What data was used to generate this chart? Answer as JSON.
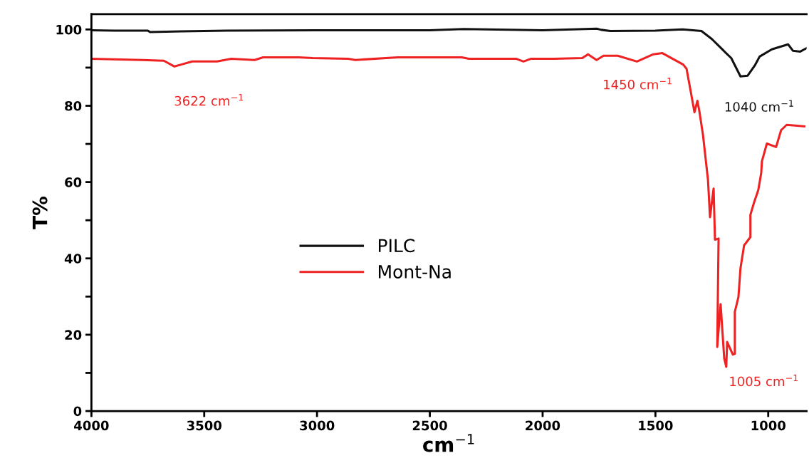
{
  "chart_data": {
    "type": "line",
    "xlabel": "cm$^{−1}$",
    "ylabel": "T%",
    "xlim": [
      4000,
      830
    ],
    "xticks": [
      4000,
      3500,
      3000,
      2500,
      2000,
      1500,
      1000
    ],
    "ylim": [
      0,
      104
    ],
    "yticks": [
      0,
      {
        "value": 10,
        "label": null
      },
      20,
      {
        "value": 30,
        "label": null
      },
      40,
      {
        "value": 50,
        "label": null
      },
      60,
      {
        "value": 70,
        "label": null
      },
      80,
      {
        "value": 90,
        "label": null
      },
      100
    ],
    "legend": "left",
    "grid": false,
    "marker": "none",
    "line_style": "solid",
    "series": [
      {
        "name": "PILC",
        "color": "#111111",
        "x": [
          4000,
          3900,
          3750,
          3740,
          3600,
          3400,
          3000,
          2500,
          2350,
          2000,
          1760,
          1740,
          1700,
          1500,
          1380,
          1296,
          1250,
          1204,
          1164,
          1123,
          1091,
          1060,
          1038,
          984,
          912,
          890,
          858,
          830
        ],
        "values": [
          99.8,
          99.7,
          99.7,
          99.3,
          99.5,
          99.7,
          99.8,
          99.8,
          100.1,
          99.8,
          100.2,
          99.9,
          99.6,
          99.7,
          100.0,
          99.6,
          97.5,
          94.8,
          92.5,
          87.7,
          87.9,
          90.5,
          92.9,
          94.8,
          96.1,
          94.4,
          94.2,
          95.1
        ]
      },
      {
        "name": "Mont-Na",
        "color": "#ee2222",
        "x": [
          4000,
          3774,
          3679,
          3632,
          3553,
          3443,
          3380,
          3277,
          3239,
          3082,
          3019,
          2862,
          2830,
          2642,
          2358,
          2327,
          2116,
          2085,
          2053,
          1950,
          1824,
          1799,
          1761,
          1730,
          1667,
          1582,
          1509,
          1469,
          1377,
          1362,
          1343,
          1327,
          1314,
          1305,
          1289,
          1274,
          1267,
          1258,
          1242,
          1236,
          1220,
          1226,
          1211,
          1195,
          1186,
          1182,
          1157,
          1148,
          1148,
          1132,
          1123,
          1107,
          1079,
          1079,
          1063,
          1044,
          1031,
          1028,
          1006,
          965,
          943,
          918,
          840
        ],
        "values": [
          92.3,
          92.0,
          91.8,
          90.3,
          91.6,
          91.6,
          92.3,
          92.0,
          92.7,
          92.7,
          92.5,
          92.3,
          92.0,
          92.7,
          92.7,
          92.3,
          92.3,
          91.6,
          92.3,
          92.3,
          92.5,
          93.5,
          92.0,
          93.1,
          93.1,
          91.6,
          93.5,
          93.8,
          90.8,
          89.7,
          83.6,
          78.3,
          81.3,
          78.5,
          72.3,
          64.3,
          60.6,
          50.8,
          58.3,
          44.9,
          45.2,
          16.8,
          28.0,
          13.8,
          11.6,
          18.1,
          14.8,
          15.0,
          26.0,
          29.9,
          37.4,
          43.4,
          45.6,
          51.4,
          54.6,
          57.9,
          62.4,
          65.4,
          70.1,
          69.2,
          73.6,
          75.0,
          74.6
        ]
      }
    ],
    "annotations": [
      {
        "text": "3622 cm$^{−1}$",
        "x": 3632,
        "y": 90.3
      },
      {
        "text": "1450 cm$^{−1}$",
        "x": 1469,
        "y": 93.8
      },
      {
        "text": "1040 cm$^{−1}$",
        "x": 1123,
        "y": 87.7
      },
      {
        "text": "1005 cm$^{−1}$",
        "x": 1186,
        "y": 11.6
      }
    ]
  }
}
